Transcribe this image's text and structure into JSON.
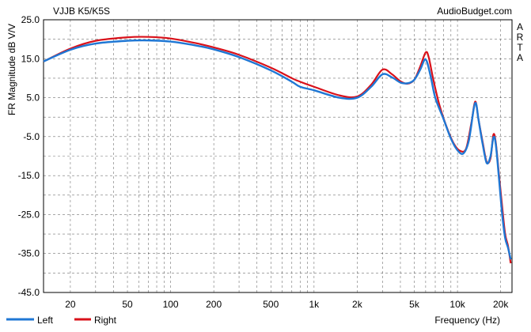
{
  "chart_data": {
    "type": "line",
    "title": "VJJB K5/K5S",
    "source": "AudioBudget.com",
    "side_label": "ARTA",
    "ylabel": "FR Magnitude dB V/V",
    "xlabel": "Frequency (Hz)",
    "x_scale": "log",
    "xlim": [
      13,
      24000
    ],
    "ylim": [
      -45,
      25
    ],
    "yticks": [
      25.0,
      15.0,
      5.0,
      -5.0,
      -15.0,
      -25.0,
      -35.0,
      -45.0
    ],
    "ytick_labels": [
      "25.0",
      "15.0",
      "5.0",
      "-5.0",
      "-15.0",
      "-25.0",
      "-35.0",
      "-45.0"
    ],
    "xticks": [
      20,
      50,
      100,
      200,
      500,
      1000,
      2000,
      5000,
      10000,
      20000
    ],
    "xtick_labels": [
      "20",
      "50",
      "100",
      "200",
      "500",
      "1k",
      "2k",
      "5k",
      "10k",
      "20k"
    ],
    "grid": true,
    "legend_position": "bottom-left",
    "series": [
      {
        "name": "Left",
        "color": "#1f77d4",
        "points": [
          [
            13,
            14.3
          ],
          [
            20,
            17.3
          ],
          [
            30,
            18.9
          ],
          [
            50,
            19.6
          ],
          [
            70,
            19.7
          ],
          [
            100,
            19.4
          ],
          [
            150,
            18.4
          ],
          [
            200,
            17.4
          ],
          [
            300,
            15.4
          ],
          [
            500,
            12.0
          ],
          [
            700,
            9.1
          ],
          [
            800,
            7.8
          ],
          [
            1000,
            6.9
          ],
          [
            1500,
            5.0
          ],
          [
            2000,
            5.0
          ],
          [
            2500,
            7.8
          ],
          [
            3000,
            11.0
          ],
          [
            3500,
            10.2
          ],
          [
            4000,
            8.9
          ],
          [
            4500,
            8.7
          ],
          [
            5000,
            9.6
          ],
          [
            5500,
            12.2
          ],
          [
            6000,
            14.8
          ],
          [
            6500,
            10.5
          ],
          [
            7000,
            5.0
          ],
          [
            8000,
            -0.5
          ],
          [
            9000,
            -5.5
          ],
          [
            10000,
            -8.5
          ],
          [
            11000,
            -9.3
          ],
          [
            12000,
            -6.0
          ],
          [
            13000,
            2.3
          ],
          [
            13500,
            3.4
          ],
          [
            14000,
            -0.5
          ],
          [
            15000,
            -7.0
          ],
          [
            16000,
            -11.8
          ],
          [
            17000,
            -10.0
          ],
          [
            17800,
            -5.2
          ],
          [
            18500,
            -7.0
          ],
          [
            19500,
            -16.0
          ],
          [
            20500,
            -25.0
          ],
          [
            21500,
            -31.0
          ],
          [
            22500,
            -33.5
          ],
          [
            23500,
            -36.5
          ]
        ]
      },
      {
        "name": "Right",
        "color": "#d9111a",
        "points": [
          [
            13,
            14.3
          ],
          [
            20,
            17.6
          ],
          [
            30,
            19.6
          ],
          [
            50,
            20.5
          ],
          [
            70,
            20.6
          ],
          [
            100,
            20.2
          ],
          [
            150,
            19.0
          ],
          [
            200,
            17.9
          ],
          [
            300,
            16.0
          ],
          [
            500,
            12.7
          ],
          [
            700,
            10.0
          ],
          [
            800,
            9.1
          ],
          [
            1000,
            7.8
          ],
          [
            1500,
            5.6
          ],
          [
            2000,
            5.3
          ],
          [
            2500,
            8.3
          ],
          [
            3000,
            12.2
          ],
          [
            3500,
            11.0
          ],
          [
            4000,
            9.2
          ],
          [
            4500,
            8.6
          ],
          [
            5000,
            9.6
          ],
          [
            5500,
            13.0
          ],
          [
            6000,
            16.6
          ],
          [
            6300,
            15.4
          ],
          [
            6800,
            9.5
          ],
          [
            7500,
            3.0
          ],
          [
            8500,
            -3.0
          ],
          [
            9500,
            -7.0
          ],
          [
            10500,
            -8.7
          ],
          [
            11500,
            -8.0
          ],
          [
            12500,
            -1.5
          ],
          [
            13300,
            4.0
          ],
          [
            14000,
            -0.5
          ],
          [
            15000,
            -6.5
          ],
          [
            16000,
            -11.5
          ],
          [
            17000,
            -10.5
          ],
          [
            17800,
            -4.5
          ],
          [
            18500,
            -6.5
          ],
          [
            19500,
            -15.0
          ],
          [
            20500,
            -23.0
          ],
          [
            21500,
            -30.0
          ],
          [
            22500,
            -33.0
          ],
          [
            23500,
            -37.5
          ]
        ]
      }
    ]
  }
}
